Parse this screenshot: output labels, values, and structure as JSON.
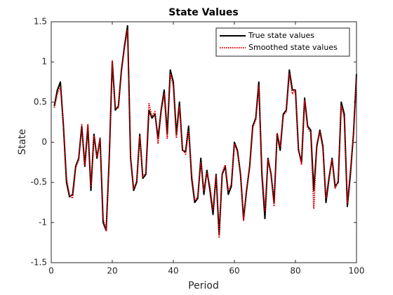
{
  "chart_data": {
    "type": "line",
    "title": "State Values",
    "x_label": "Period",
    "y_label": "State",
    "x": [
      1,
      2,
      3,
      4,
      5,
      6,
      7,
      8,
      9,
      10,
      11,
      12,
      13,
      14,
      15,
      16,
      17,
      18,
      19,
      20,
      21,
      22,
      23,
      24,
      25,
      26,
      27,
      28,
      29,
      30,
      31,
      32,
      33,
      34,
      35,
      36,
      37,
      38,
      39,
      40,
      41,
      42,
      43,
      44,
      45,
      46,
      47,
      48,
      49,
      50,
      51,
      52,
      53,
      54,
      55,
      56,
      57,
      58,
      59,
      60,
      61,
      62,
      63,
      64,
      65,
      66,
      67,
      68,
      69,
      70,
      71,
      72,
      73,
      74,
      75,
      76,
      77,
      78,
      79,
      80,
      81,
      82,
      83,
      84,
      85,
      86,
      87,
      88,
      89,
      90,
      91,
      92,
      93,
      94,
      95,
      96,
      97,
      98,
      99,
      100
    ],
    "series": [
      {
        "name": "True state values",
        "color": "#000000",
        "style": "solid",
        "values": [
          0.45,
          0.65,
          0.75,
          0.2,
          -0.5,
          -0.68,
          -0.65,
          -0.3,
          -0.2,
          0.2,
          -0.3,
          0.2,
          -0.6,
          0.1,
          -0.2,
          0.05,
          -1.0,
          -1.1,
          -0.2,
          1.0,
          0.4,
          0.45,
          0.9,
          1.2,
          1.45,
          -0.2,
          -0.6,
          -0.5,
          0.1,
          -0.45,
          -0.4,
          0.4,
          0.3,
          0.35,
          0.05,
          0.4,
          0.65,
          0.1,
          0.9,
          0.75,
          0.1,
          0.5,
          -0.1,
          -0.12,
          0.2,
          -0.45,
          -0.75,
          -0.7,
          -0.2,
          -0.65,
          -0.35,
          -0.6,
          -0.9,
          -0.4,
          -1.15,
          -0.4,
          -0.3,
          -0.65,
          -0.55,
          0.0,
          -0.1,
          -0.4,
          -0.95,
          -0.6,
          -0.3,
          0.2,
          0.3,
          0.75,
          -0.4,
          -0.95,
          -0.2,
          -0.4,
          -0.75,
          0.1,
          -0.1,
          0.35,
          0.4,
          0.9,
          0.65,
          0.65,
          -0.1,
          -0.25,
          0.55,
          0.2,
          0.15,
          -0.6,
          -0.05,
          0.15,
          -0.05,
          -0.75,
          -0.45,
          -0.2,
          -0.55,
          -0.5,
          0.5,
          0.35,
          -0.8,
          -0.4,
          0.1,
          0.85
        ]
      },
      {
        "name": "Smoothed state values",
        "color": "#e00000",
        "style": "dotted",
        "values": [
          0.43,
          0.6,
          0.7,
          0.22,
          -0.45,
          -0.65,
          -0.7,
          -0.32,
          -0.22,
          0.22,
          -0.28,
          0.22,
          -0.55,
          0.08,
          -0.18,
          0.04,
          -0.95,
          -1.1,
          -0.22,
          1.02,
          0.42,
          0.43,
          0.88,
          1.18,
          1.4,
          -0.18,
          -0.58,
          -0.48,
          0.08,
          -0.43,
          -0.38,
          0.48,
          0.32,
          0.38,
          -0.02,
          0.38,
          0.6,
          0.05,
          0.85,
          0.7,
          0.05,
          0.45,
          -0.08,
          -0.15,
          0.15,
          -0.4,
          -0.72,
          -0.68,
          -0.25,
          -0.6,
          -0.38,
          -0.55,
          -0.85,
          -0.42,
          -1.18,
          -0.38,
          -0.28,
          -0.6,
          -0.52,
          -0.02,
          -0.12,
          -0.38,
          -0.98,
          -0.58,
          -0.32,
          0.18,
          0.28,
          0.7,
          -0.35,
          -0.85,
          -0.22,
          -0.38,
          -0.8,
          0.12,
          -0.05,
          0.33,
          0.38,
          0.85,
          0.6,
          0.65,
          -0.08,
          -0.28,
          0.52,
          0.18,
          0.12,
          -0.82,
          -0.02,
          0.12,
          -0.08,
          -0.7,
          -0.42,
          -0.22,
          -0.58,
          -0.48,
          0.45,
          0.3,
          -0.75,
          -0.35,
          0.08,
          0.8
        ]
      }
    ],
    "xlim": [
      0,
      100
    ],
    "xticks": [
      0,
      20,
      40,
      60,
      80,
      100
    ],
    "ylim": [
      -1.5,
      1.5
    ],
    "yticks": [
      -1.5,
      -1,
      -0.5,
      0,
      0.5,
      1,
      1.5
    ],
    "grid": false,
    "legend": "northeast"
  }
}
